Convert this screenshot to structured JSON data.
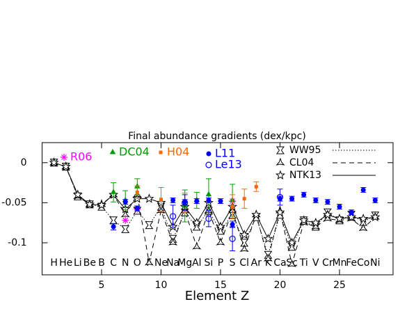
{
  "chart_data": {
    "type": "scatter",
    "title": "Final abundance gradients (dex/kpc)",
    "xlabel": "Element Z",
    "xlim": [
      0,
      29.5
    ],
    "ylim": [
      -0.14,
      0.025
    ],
    "xticks": [
      5,
      10,
      15,
      20,
      25
    ],
    "yticks": [
      0,
      -0.05,
      -0.1
    ],
    "x": [
      1,
      2,
      3,
      4,
      5,
      6,
      7,
      8,
      9,
      10,
      11,
      12,
      13,
      14,
      15,
      16,
      17,
      18,
      19,
      20,
      21,
      22,
      23,
      24,
      25,
      26,
      27,
      28
    ],
    "elements": [
      "H",
      "He",
      "Li",
      "Be",
      "B",
      "C",
      "N",
      "O",
      "F",
      "Ne",
      "Na",
      "Mg",
      "Al",
      "Si",
      "P",
      "S",
      "Cl",
      "Ar",
      "K",
      "Ca",
      "Sc",
      "Ti",
      "V",
      "Cr",
      "Mn",
      "Fe",
      "Co",
      "Ni"
    ],
    "series": [
      {
        "name": "WW95",
        "color": "#000000",
        "style": "dotted",
        "marker": "bowtie",
        "values": [
          0,
          -0.005,
          -0.042,
          -0.052,
          -0.055,
          -0.072,
          -0.083,
          -0.06,
          -0.078,
          -0.055,
          -0.095,
          -0.062,
          -0.08,
          -0.06,
          -0.085,
          -0.065,
          -0.1,
          -0.068,
          -0.115,
          -0.065,
          -0.105,
          -0.072,
          -0.08,
          -0.062,
          -0.072,
          -0.065,
          -0.074,
          -0.066
        ]
      },
      {
        "name": "CL04",
        "color": "#000000",
        "style": "dashed",
        "marker": "tristar",
        "values": [
          0,
          -0.005,
          -0.042,
          -0.052,
          -0.052,
          -0.04,
          -0.065,
          -0.04,
          -0.125,
          -0.06,
          -0.1,
          -0.06,
          -0.105,
          -0.06,
          -0.1,
          -0.06,
          -0.108,
          -0.065,
          -0.12,
          -0.06,
          -0.127,
          -0.075,
          -0.08,
          -0.07,
          -0.072,
          -0.07,
          -0.082,
          -0.068
        ]
      },
      {
        "name": "NTK13",
        "color": "#000000",
        "style": "solid",
        "marker": "star",
        "values": [
          0,
          -0.005,
          -0.04,
          -0.052,
          -0.053,
          -0.04,
          -0.058,
          -0.045,
          -0.045,
          -0.05,
          -0.08,
          -0.055,
          -0.075,
          -0.05,
          -0.08,
          -0.055,
          -0.09,
          -0.065,
          -0.095,
          -0.062,
          -0.1,
          -0.072,
          -0.075,
          -0.065,
          -0.07,
          -0.068,
          -0.07,
          -0.068
        ]
      }
    ],
    "observations": [
      {
        "name": "R06",
        "color": "#ff00ff",
        "marker": "asterisk",
        "x": [
          7,
          8,
          16
        ],
        "values": [
          -0.072,
          -0.058,
          -0.048
        ]
      },
      {
        "name": "DC04",
        "color": "#009900",
        "marker": "triangle",
        "x": [
          6,
          7,
          8,
          12,
          13,
          14,
          16
        ],
        "values": [
          -0.037,
          -0.047,
          -0.03,
          -0.054,
          -0.047,
          -0.04,
          -0.047
        ],
        "errors": [
          0.012,
          0.012,
          0.01,
          0.02,
          0.01,
          0.02,
          0.02
        ]
      },
      {
        "name": "H04",
        "color": "#ff6600",
        "marker": "square",
        "x": [
          8,
          10,
          12,
          16,
          17,
          18
        ],
        "values": [
          -0.037,
          -0.046,
          -0.05,
          -0.055,
          -0.045,
          -0.03
        ],
        "errors": [
          0.008,
          0.015,
          0.012,
          0.015,
          0.012,
          0.006
        ]
      },
      {
        "name": "L11",
        "color": "#0000ff",
        "marker": "circle",
        "x": [
          6,
          7,
          8,
          11,
          12,
          13,
          14,
          15,
          16,
          20,
          21,
          22,
          23,
          24,
          25,
          26,
          27,
          28
        ],
        "values": [
          -0.08,
          -0.049,
          -0.057,
          -0.047,
          -0.049,
          -0.048,
          -0.047,
          -0.048,
          -0.077,
          -0.045,
          -0.045,
          -0.04,
          -0.047,
          -0.049,
          -0.055,
          -0.062,
          -0.034,
          -0.047
        ],
        "errors": [
          0.004,
          0.003,
          0.003,
          0.003,
          0.003,
          0.003,
          0.003,
          0.003,
          0.004,
          0.003,
          0.003,
          0.003,
          0.003,
          0.003,
          0.003,
          0.003,
          0.003,
          0.003
        ]
      },
      {
        "name": "Le13",
        "color": "#0000ff",
        "marker": "open-circle",
        "x": [
          11,
          12,
          14,
          16,
          20
        ],
        "values": [
          -0.067,
          -0.05,
          -0.07,
          -0.095,
          -0.043
        ],
        "errors": [
          0.014,
          0.01,
          0.01,
          0.015,
          0.01
        ]
      }
    ]
  }
}
